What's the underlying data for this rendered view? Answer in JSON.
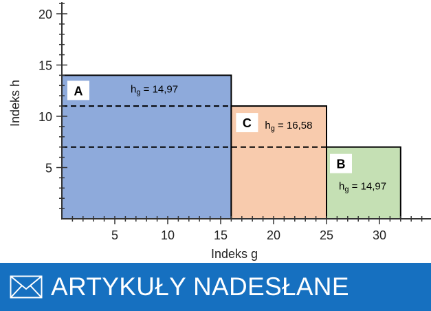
{
  "chart_data": {
    "type": "bar",
    "xlabel": "Indeks g",
    "ylabel": "Indeks h",
    "xlim": [
      0,
      35
    ],
    "ylim": [
      0,
      21
    ],
    "xticks": [
      5,
      10,
      15,
      20,
      25,
      30
    ],
    "yticks": [
      5,
      10,
      15,
      20
    ],
    "grid": false,
    "bars": [
      {
        "label": "A",
        "x0": 0,
        "x1": 16,
        "height": 14,
        "annotation": "14,97",
        "color": "#8eaadb"
      },
      {
        "label": "C",
        "x0": 16,
        "x1": 25,
        "height": 11,
        "annotation": "16,58",
        "color": "#f8cbad"
      },
      {
        "label": "B",
        "x0": 25,
        "x1": 32,
        "height": 7,
        "annotation": "14,97",
        "color": "#c5e0b4"
      }
    ],
    "dashed_lines": [
      11,
      7
    ],
    "annotation_prefix": "h",
    "annotation_sub": "g"
  },
  "banner": {
    "label": "ARTYKUŁY NADESŁANE",
    "icon": "envelope-icon",
    "color": "#1670c0"
  }
}
